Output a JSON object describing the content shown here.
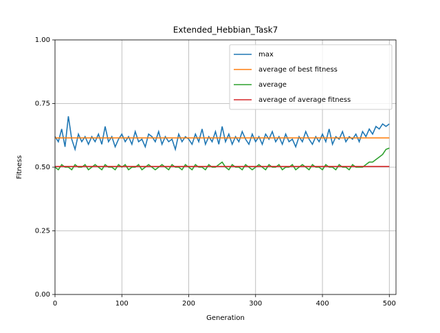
{
  "chart_data": {
    "type": "line",
    "title": "Extended_Hebbian_Task7",
    "x_label": "Generation",
    "y_label": "Fitness",
    "xlim": [
      0,
      510
    ],
    "ylim": [
      0,
      1
    ],
    "xticks": [
      0,
      100,
      200,
      300,
      400,
      500
    ],
    "yticks": [
      {
        "value": 0,
        "label": "0.00"
      },
      {
        "value": 0.25,
        "label": "0.25"
      },
      {
        "value": 0.5,
        "label": "0.50"
      },
      {
        "value": 0.75,
        "label": "0.75"
      },
      {
        "value": 1,
        "label": "1.00"
      }
    ],
    "grid": true,
    "legend_position": "upper-right",
    "x": [
      0,
      5,
      10,
      15,
      20,
      25,
      30,
      35,
      40,
      45,
      50,
      55,
      60,
      65,
      70,
      75,
      80,
      85,
      90,
      95,
      100,
      105,
      110,
      115,
      120,
      125,
      130,
      135,
      140,
      145,
      150,
      155,
      160,
      165,
      170,
      175,
      180,
      185,
      190,
      195,
      200,
      205,
      210,
      215,
      220,
      225,
      230,
      235,
      240,
      245,
      250,
      255,
      260,
      265,
      270,
      275,
      280,
      285,
      290,
      295,
      300,
      305,
      310,
      315,
      320,
      325,
      330,
      335,
      340,
      345,
      350,
      355,
      360,
      365,
      370,
      375,
      380,
      385,
      390,
      395,
      400,
      405,
      410,
      415,
      420,
      425,
      430,
      435,
      440,
      445,
      450,
      455,
      460,
      465,
      470,
      475,
      480,
      485,
      490,
      495,
      500
    ],
    "series": [
      {
        "name": "max",
        "color": "#1f77b4",
        "values": [
          0.62,
          0.6,
          0.65,
          0.58,
          0.7,
          0.61,
          0.57,
          0.63,
          0.6,
          0.62,
          0.59,
          0.62,
          0.6,
          0.63,
          0.59,
          0.66,
          0.6,
          0.62,
          0.58,
          0.61,
          0.63,
          0.6,
          0.62,
          0.59,
          0.64,
          0.6,
          0.61,
          0.58,
          0.63,
          0.62,
          0.6,
          0.64,
          0.59,
          0.62,
          0.6,
          0.61,
          0.57,
          0.63,
          0.6,
          0.62,
          0.61,
          0.59,
          0.63,
          0.6,
          0.65,
          0.59,
          0.62,
          0.6,
          0.64,
          0.59,
          0.66,
          0.6,
          0.63,
          0.59,
          0.62,
          0.6,
          0.64,
          0.61,
          0.59,
          0.63,
          0.6,
          0.62,
          0.59,
          0.63,
          0.61,
          0.64,
          0.6,
          0.62,
          0.59,
          0.63,
          0.6,
          0.61,
          0.58,
          0.62,
          0.6,
          0.64,
          0.61,
          0.59,
          0.62,
          0.6,
          0.63,
          0.6,
          0.65,
          0.59,
          0.62,
          0.61,
          0.64,
          0.6,
          0.62,
          0.61,
          0.63,
          0.6,
          0.64,
          0.62,
          0.65,
          0.63,
          0.66,
          0.65,
          0.67,
          0.66,
          0.67
        ]
      },
      {
        "name": "average of best fitness",
        "color": "#ff7f0e",
        "values": [
          0.615,
          0.615,
          0.615,
          0.615,
          0.615,
          0.615,
          0.615,
          0.615,
          0.615,
          0.615,
          0.615,
          0.615,
          0.615,
          0.615,
          0.615,
          0.615,
          0.615,
          0.615,
          0.615,
          0.615,
          0.615,
          0.615,
          0.615,
          0.615,
          0.615,
          0.615,
          0.615,
          0.615,
          0.615,
          0.615,
          0.615,
          0.615,
          0.615,
          0.615,
          0.615,
          0.615,
          0.615,
          0.615,
          0.615,
          0.615,
          0.615,
          0.615,
          0.615,
          0.615,
          0.615,
          0.615,
          0.615,
          0.615,
          0.615,
          0.615,
          0.615,
          0.615,
          0.615,
          0.615,
          0.615,
          0.615,
          0.615,
          0.615,
          0.615,
          0.615,
          0.615,
          0.615,
          0.615,
          0.615,
          0.615,
          0.615,
          0.615,
          0.615,
          0.615,
          0.615,
          0.615,
          0.615,
          0.615,
          0.615,
          0.615,
          0.615,
          0.615,
          0.615,
          0.615,
          0.615,
          0.615,
          0.615,
          0.615,
          0.615,
          0.615,
          0.615,
          0.615,
          0.615,
          0.615,
          0.615,
          0.615,
          0.615,
          0.615,
          0.615,
          0.615,
          0.615,
          0.615,
          0.615,
          0.615,
          0.615,
          0.615
        ]
      },
      {
        "name": "average",
        "color": "#2ca02c",
        "values": [
          0.5,
          0.49,
          0.51,
          0.5,
          0.5,
          0.49,
          0.51,
          0.5,
          0.5,
          0.51,
          0.49,
          0.5,
          0.51,
          0.5,
          0.49,
          0.51,
          0.5,
          0.5,
          0.49,
          0.51,
          0.5,
          0.51,
          0.49,
          0.5,
          0.5,
          0.51,
          0.49,
          0.5,
          0.51,
          0.5,
          0.49,
          0.5,
          0.51,
          0.5,
          0.49,
          0.51,
          0.5,
          0.5,
          0.49,
          0.51,
          0.5,
          0.49,
          0.51,
          0.5,
          0.5,
          0.49,
          0.51,
          0.5,
          0.5,
          0.51,
          0.52,
          0.5,
          0.49,
          0.51,
          0.5,
          0.5,
          0.49,
          0.51,
          0.5,
          0.49,
          0.5,
          0.51,
          0.5,
          0.49,
          0.51,
          0.5,
          0.5,
          0.51,
          0.49,
          0.5,
          0.5,
          0.51,
          0.49,
          0.5,
          0.51,
          0.5,
          0.49,
          0.51,
          0.5,
          0.5,
          0.49,
          0.51,
          0.5,
          0.5,
          0.49,
          0.51,
          0.5,
          0.5,
          0.49,
          0.51,
          0.5,
          0.5,
          0.5,
          0.51,
          0.52,
          0.52,
          0.53,
          0.54,
          0.55,
          0.57,
          0.575
        ]
      },
      {
        "name": "average of average fitness",
        "color": "#d62728",
        "values": [
          0.503,
          0.503,
          0.503,
          0.503,
          0.503,
          0.503,
          0.503,
          0.503,
          0.503,
          0.503,
          0.503,
          0.503,
          0.503,
          0.503,
          0.503,
          0.503,
          0.503,
          0.503,
          0.503,
          0.503,
          0.503,
          0.503,
          0.503,
          0.503,
          0.503,
          0.503,
          0.503,
          0.503,
          0.503,
          0.503,
          0.503,
          0.503,
          0.503,
          0.503,
          0.503,
          0.503,
          0.503,
          0.503,
          0.503,
          0.503,
          0.503,
          0.503,
          0.503,
          0.503,
          0.503,
          0.503,
          0.503,
          0.503,
          0.503,
          0.503,
          0.503,
          0.503,
          0.503,
          0.503,
          0.503,
          0.503,
          0.503,
          0.503,
          0.503,
          0.503,
          0.503,
          0.503,
          0.503,
          0.503,
          0.503,
          0.503,
          0.503,
          0.503,
          0.503,
          0.503,
          0.503,
          0.503,
          0.503,
          0.503,
          0.503,
          0.503,
          0.503,
          0.503,
          0.503,
          0.503,
          0.503,
          0.503,
          0.503,
          0.503,
          0.503,
          0.503,
          0.503,
          0.503,
          0.503,
          0.503,
          0.503,
          0.503,
          0.503,
          0.503,
          0.503,
          0.503,
          0.503,
          0.503,
          0.503,
          0.503,
          0.503
        ]
      }
    ]
  }
}
